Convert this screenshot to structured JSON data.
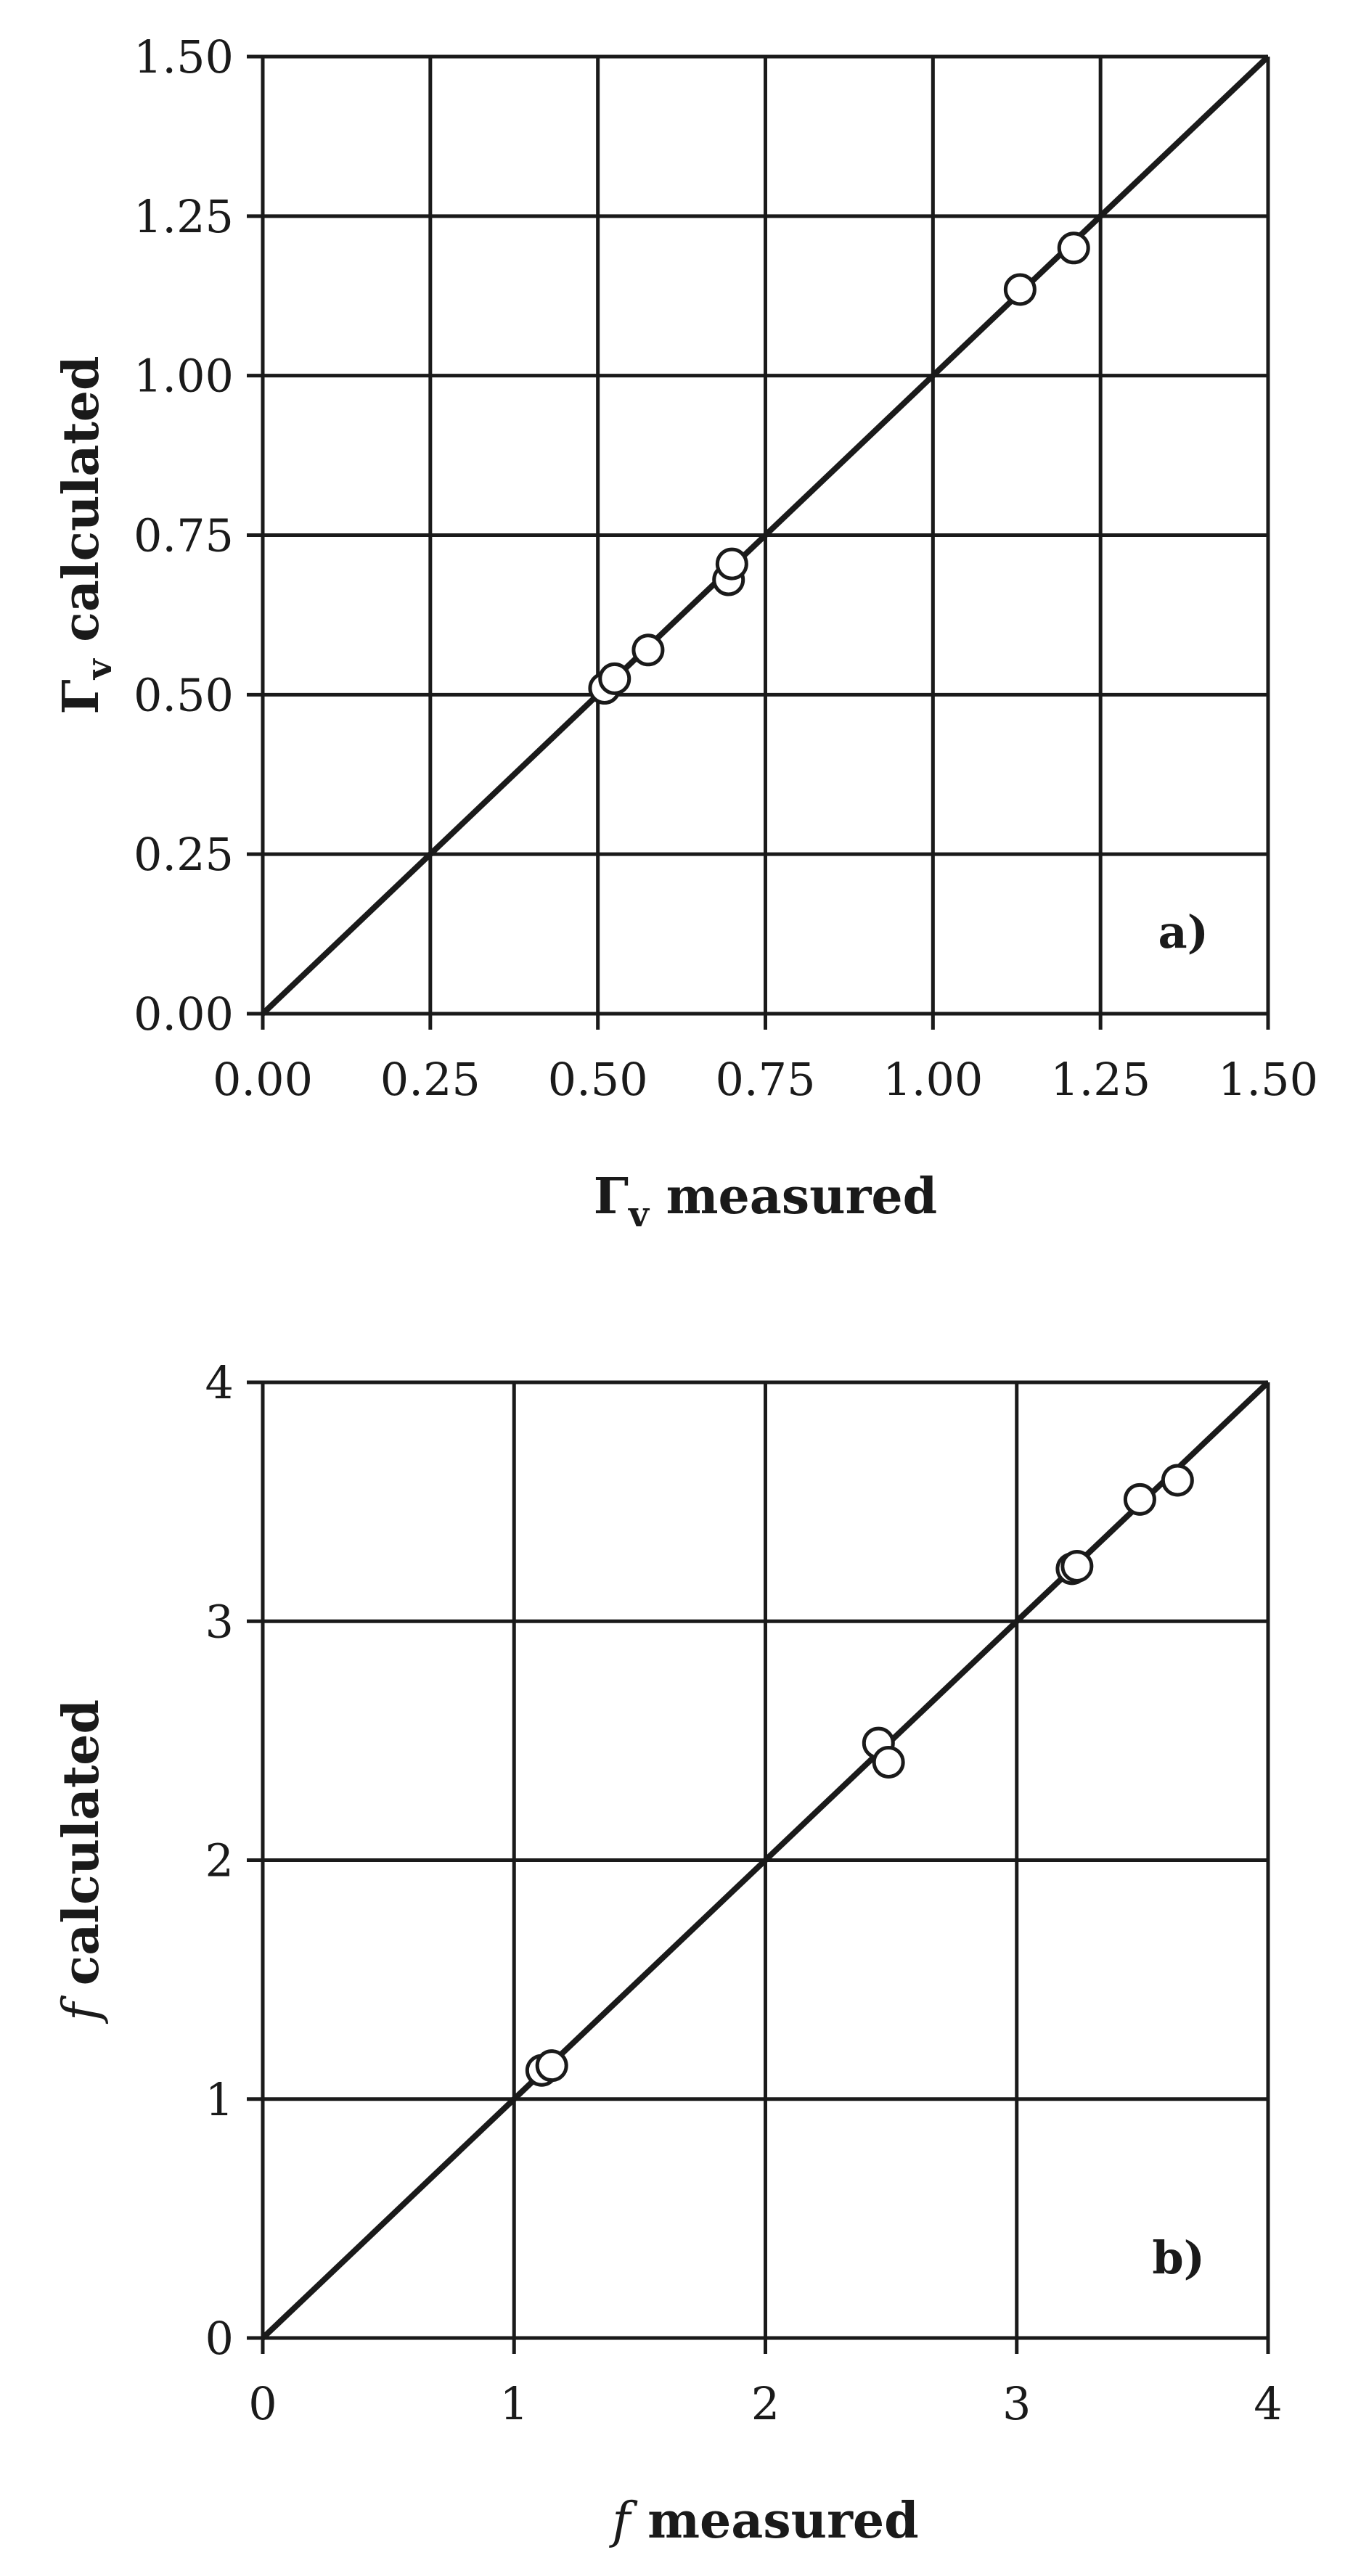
{
  "chart_data": [
    {
      "panel_label": "a)",
      "type": "scatter",
      "xlabel": {
        "symbol": "Γ",
        "subscript": "v",
        "text": "measured"
      },
      "ylabel": {
        "symbol": "Γ",
        "subscript": "v",
        "text": "calculated"
      },
      "xlim": [
        0,
        1.5
      ],
      "ylim": [
        0,
        1.5
      ],
      "ticks": [
        0.0,
        0.25,
        0.5,
        0.75,
        1.0,
        1.25,
        1.5
      ],
      "tick_labels": [
        "0.00",
        "0.25",
        "0.50",
        "0.75",
        "1.00",
        "1.25",
        "1.50"
      ],
      "grid": true,
      "reference_line": {
        "type": "line",
        "x": [
          0,
          1.5
        ],
        "y": [
          0,
          1.5
        ]
      },
      "points": [
        {
          "x": 0.51,
          "y": 0.51
        },
        {
          "x": 0.525,
          "y": 0.525
        },
        {
          "x": 0.575,
          "y": 0.57
        },
        {
          "x": 0.695,
          "y": 0.68
        },
        {
          "x": 0.7,
          "y": 0.705
        },
        {
          "x": 1.13,
          "y": 1.135
        },
        {
          "x": 1.21,
          "y": 1.2
        }
      ]
    },
    {
      "panel_label": "b)",
      "type": "scatter",
      "xlabel": {
        "symbol": "f",
        "text": "measured"
      },
      "ylabel": {
        "symbol": "f",
        "text": "calculated"
      },
      "xlim": [
        0,
        4
      ],
      "ylim": [
        0,
        4
      ],
      "ticks": [
        0,
        1,
        2,
        3,
        4
      ],
      "tick_labels": [
        "0",
        "1",
        "2",
        "3",
        "4"
      ],
      "grid": true,
      "reference_line": {
        "type": "line",
        "x": [
          0,
          4
        ],
        "y": [
          0,
          4
        ]
      },
      "points": [
        {
          "x": 1.11,
          "y": 1.12
        },
        {
          "x": 1.15,
          "y": 1.14
        },
        {
          "x": 2.45,
          "y": 2.49
        },
        {
          "x": 2.49,
          "y": 2.41
        },
        {
          "x": 3.22,
          "y": 3.22
        },
        {
          "x": 3.24,
          "y": 3.23
        },
        {
          "x": 3.49,
          "y": 3.51
        },
        {
          "x": 3.64,
          "y": 3.59
        }
      ]
    }
  ]
}
